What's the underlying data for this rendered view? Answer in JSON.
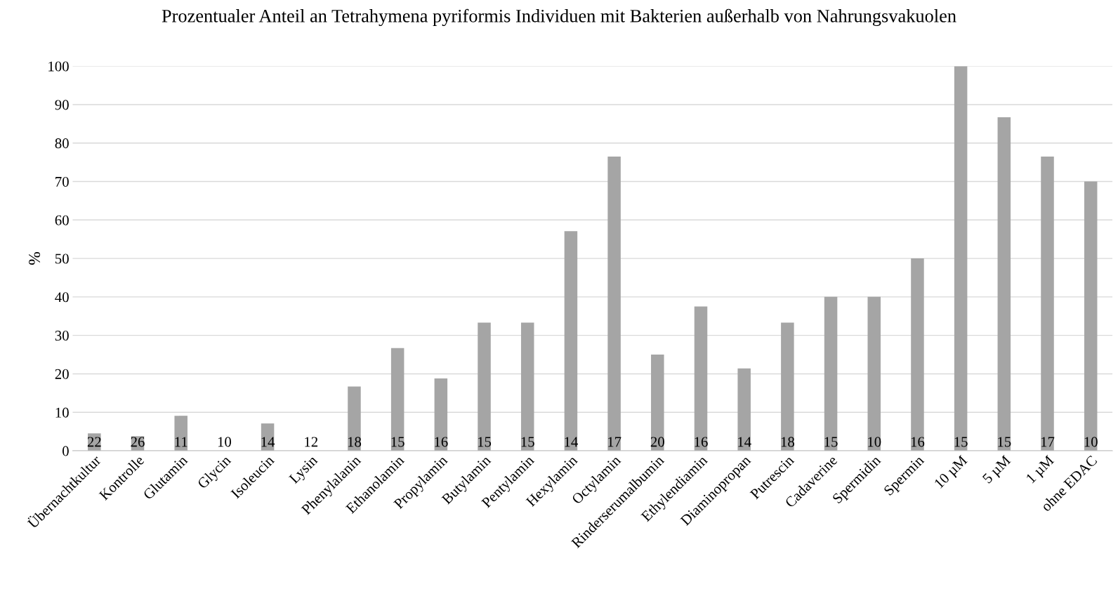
{
  "chart_data": {
    "type": "bar",
    "title": "Prozentualer Anteil an Tetrahymena pyriformis Individuen mit Bakterien außerhalb von Nahrungsvakuolen",
    "ylabel": "%",
    "categories": [
      "Übernachtkultur",
      "Kontrolle",
      "Glutamin",
      "Glycin",
      "Isoleucin",
      "Lysin",
      "Phenylalanin",
      "Ethanolamin",
      "Propylamin",
      "Butylamin",
      "Pentylamin",
      "Hexylamin",
      "Octylamin",
      "Rinderserumalbumin",
      "Ethylendiamin",
      "Diaminopropan",
      "Putrescin",
      "Cadaverine",
      "Spermidin",
      "Spermin",
      "10 µM",
      "5 µM",
      "1 µM",
      "ohne EDAC"
    ],
    "values": [
      4.5,
      3.8,
      9.1,
      0,
      7.1,
      0,
      16.7,
      26.7,
      18.8,
      33.3,
      33.3,
      57.1,
      76.5,
      25,
      37.5,
      21.4,
      33.3,
      40,
      40,
      50,
      100,
      86.7,
      76.5,
      70
    ],
    "color": "#a5a5a5",
    "ylim": [
      0,
      100
    ],
    "yticks": [
      0,
      10,
      20,
      30,
      40,
      50,
      60,
      70,
      80,
      90,
      100
    ],
    "grid": "y",
    "annotations": [
      {
        "text": "22",
        "x": "Übernachtkultur",
        "y": 0
      },
      {
        "text": "26",
        "x": "Kontrolle",
        "y": 0
      },
      {
        "text": "11",
        "x": "Glutamin",
        "y": 0
      },
      {
        "text": "10",
        "x": "Glycin",
        "y": 0
      },
      {
        "text": "14",
        "x": "Isoleucin",
        "y": 0
      },
      {
        "text": "12",
        "x": "Lysin",
        "y": 0
      },
      {
        "text": "18",
        "x": "Phenylalanin",
        "y": 0
      },
      {
        "text": "15",
        "x": "Ethanolamin",
        "y": 0
      },
      {
        "text": "16",
        "x": "Propylamin",
        "y": 0
      },
      {
        "text": "15",
        "x": "Butylamin",
        "y": 0
      },
      {
        "text": "15",
        "x": "Pentylamin",
        "y": 0
      },
      {
        "text": "14",
        "x": "Hexylamin",
        "y": 0
      },
      {
        "text": "17",
        "x": "Octylamin",
        "y": 0
      },
      {
        "text": "20",
        "x": "Rinderserumalbumin",
        "y": 0
      },
      {
        "text": "16",
        "x": "Ethylendiamin",
        "y": 0
      },
      {
        "text": "14",
        "x": "Diaminopropan",
        "y": 0
      },
      {
        "text": "18",
        "x": "Putrescin",
        "y": 0
      },
      {
        "text": "15",
        "x": "Cadaverine",
        "y": 0
      },
      {
        "text": "10",
        "x": "Spermidin",
        "y": 0
      },
      {
        "text": "16",
        "x": "Spermin",
        "y": 0
      },
      {
        "text": "15",
        "x": "10 µM",
        "y": 0
      },
      {
        "text": "15",
        "x": "5 µM",
        "y": 0
      },
      {
        "text": "17",
        "x": "1 µM",
        "y": 0
      },
      {
        "text": "10",
        "x": "ohne EDAC",
        "y": 0
      }
    ]
  }
}
